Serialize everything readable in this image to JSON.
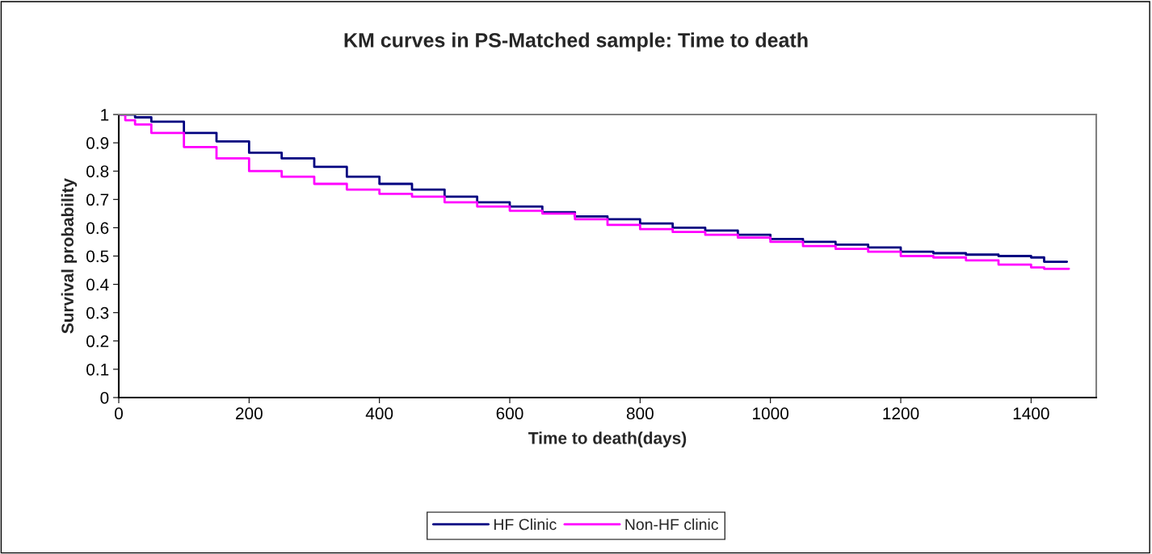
{
  "chart_data": {
    "type": "step",
    "title": "KM curves in PS-Matched sample: Time to death",
    "xlabel": "Time to death(days)",
    "ylabel": "Survival probability",
    "xlim": [
      0,
      1500
    ],
    "xticks": [
      0,
      200,
      400,
      600,
      800,
      1000,
      1200,
      1400
    ],
    "ylim": [
      0,
      1
    ],
    "yticks": [
      0,
      0.1,
      0.2,
      0.3,
      0.4,
      0.5,
      0.6,
      0.7,
      0.8,
      0.9,
      1
    ],
    "grid": false,
    "legend": "bottom",
    "marker": "none",
    "line_style": "solid",
    "series": [
      {
        "name": "HF Clinic",
        "color": "#000080",
        "x": [
          0,
          25,
          50,
          100,
          150,
          200,
          250,
          300,
          350,
          400,
          450,
          500,
          550,
          600,
          650,
          700,
          750,
          800,
          850,
          900,
          950,
          1000,
          1050,
          1100,
          1150,
          1200,
          1250,
          1300,
          1350,
          1400,
          1420,
          1455
        ],
        "values": [
          1,
          0.99,
          0.975,
          0.935,
          0.905,
          0.865,
          0.845,
          0.815,
          0.78,
          0.755,
          0.735,
          0.71,
          0.69,
          0.675,
          0.655,
          0.64,
          0.63,
          0.615,
          0.6,
          0.59,
          0.575,
          0.56,
          0.55,
          0.54,
          0.53,
          0.515,
          0.51,
          0.505,
          0.5,
          0.495,
          0.48,
          0.48
        ]
      },
      {
        "name": "Non-HF clinic",
        "color": "#ff00ff",
        "x": [
          0,
          10,
          25,
          50,
          100,
          150,
          200,
          250,
          300,
          350,
          400,
          450,
          500,
          550,
          600,
          650,
          700,
          750,
          800,
          850,
          900,
          950,
          1000,
          1050,
          1100,
          1150,
          1200,
          1250,
          1300,
          1350,
          1400,
          1420,
          1458
        ],
        "values": [
          1,
          0.98,
          0.965,
          0.935,
          0.885,
          0.845,
          0.8,
          0.78,
          0.755,
          0.735,
          0.72,
          0.71,
          0.69,
          0.675,
          0.66,
          0.65,
          0.63,
          0.61,
          0.595,
          0.585,
          0.575,
          0.565,
          0.55,
          0.535,
          0.525,
          0.515,
          0.5,
          0.495,
          0.485,
          0.47,
          0.46,
          0.455,
          0.455
        ]
      }
    ]
  }
}
